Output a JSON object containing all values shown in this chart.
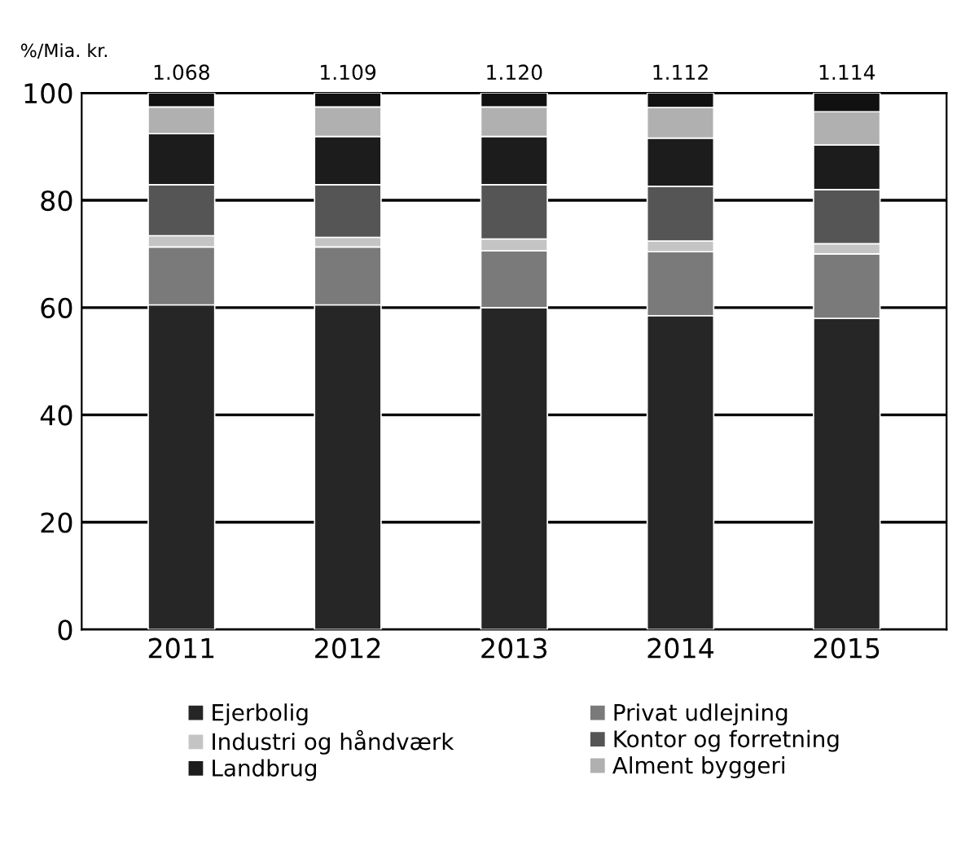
{
  "chart_data": {
    "type": "bar",
    "stacked": true,
    "ylabel": "%/Mia. kr.",
    "categories": [
      "2011",
      "2012",
      "2013",
      "2014",
      "2015"
    ],
    "series": [
      {
        "name": "Ejerbolig",
        "color": "#262626",
        "values": [
          60.5,
          60.5,
          60.0,
          58.5,
          58.0
        ]
      },
      {
        "name": "Privat udlejning",
        "color": "#7a7a7a",
        "values": [
          10.8,
          10.8,
          10.6,
          11.9,
          12.0
        ]
      },
      {
        "name": "Industri og håndværk",
        "color": "#c4c4c4",
        "values": [
          2.1,
          1.8,
          2.2,
          2.0,
          1.9
        ]
      },
      {
        "name": "Kontor og forretning",
        "color": "#555555",
        "values": [
          9.5,
          9.8,
          10.1,
          10.2,
          10.1
        ]
      },
      {
        "name": "Landbrug",
        "color": "#1c1c1c",
        "values": [
          9.5,
          9.0,
          9.0,
          9.0,
          8.3
        ]
      },
      {
        "name": "Alment byggeri",
        "color": "#b0b0b0",
        "values": [
          5.0,
          5.5,
          5.5,
          5.7,
          6.2
        ]
      },
      {
        "color": "#111111",
        "values": [
          2.6,
          2.6,
          2.6,
          2.7,
          3.5
        ]
      }
    ],
    "annotations": [
      {
        "text": "1.068",
        "x": "2011",
        "y": 100
      },
      {
        "text": "1.109",
        "x": "2012",
        "y": 100
      },
      {
        "text": "1.120",
        "x": "2013",
        "y": 100
      },
      {
        "text": "1.112",
        "x": "2014",
        "y": 100
      },
      {
        "text": "1.114",
        "x": "2015",
        "y": 100
      }
    ],
    "ylim": [
      0,
      100
    ],
    "yticks": [
      0,
      20,
      40,
      60,
      80,
      100
    ],
    "grid": "y",
    "legend": "bottom"
  }
}
